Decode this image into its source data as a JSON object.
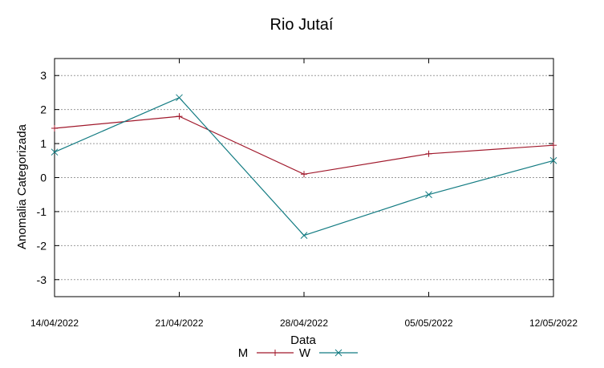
{
  "chart_data": {
    "type": "line",
    "title": "Rio Jutaí",
    "xlabel": "Data",
    "ylabel": "Anomalia Categorizada",
    "categories": [
      "14/04/2022",
      "21/04/2022",
      "28/04/2022",
      "05/05/2022",
      "12/05/2022"
    ],
    "ylim": [
      -3.5,
      3.5
    ],
    "yticks": [
      3,
      2,
      1,
      0,
      -1,
      -2,
      -3
    ],
    "ytick_labels": [
      "3",
      "2",
      "1",
      "0",
      "-1",
      "-2",
      "-3"
    ],
    "grid": true,
    "legend_position": "bottom-center",
    "series": [
      {
        "name": "M",
        "values": [
          1.45,
          1.8,
          0.1,
          0.7,
          0.95
        ],
        "color": "#a0182b",
        "marker": "plus"
      },
      {
        "name": "W",
        "values": [
          0.75,
          2.35,
          -1.7,
          -0.5,
          0.5
        ],
        "color": "#127b82",
        "marker": "cross"
      }
    ]
  }
}
